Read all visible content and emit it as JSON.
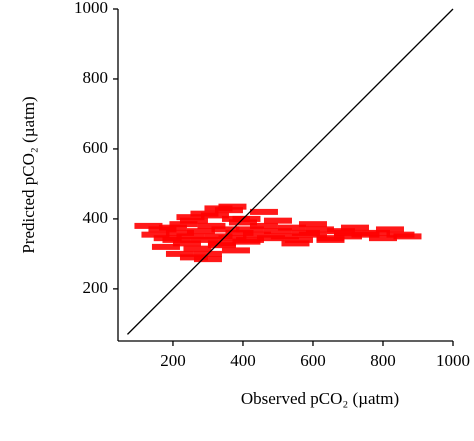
{
  "chart_data": {
    "type": "scatter",
    "xlabel": "Observed pCO₂ (µatm)",
    "ylabel": "Predicted pCO₂ (µatm)",
    "color": "#ff0000",
    "xlim": [
      43,
      1000
    ],
    "ylim": [
      51,
      1000
    ],
    "xticks": [
      200,
      400,
      600,
      800,
      1000
    ],
    "yticks": [
      200,
      400,
      600,
      800,
      1000
    ],
    "x": [
      130,
      150,
      170,
      185,
      200,
      210,
      220,
      230,
      240,
      250,
      260,
      270,
      280,
      290,
      300,
      310,
      320,
      330,
      340,
      350,
      360,
      370,
      380,
      390,
      400,
      410,
      420,
      440,
      460,
      480,
      500,
      520,
      540,
      560,
      580,
      600,
      620,
      650,
      680,
      700,
      720,
      750,
      780,
      800,
      820,
      850,
      870,
      180,
      220,
      260,
      300,
      340,
      380,
      420,
      460,
      500,
      550,
      600,
      650,
      700,
      250,
      290,
      330,
      370,
      410
    ],
    "y": [
      380,
      355,
      370,
      345,
      375,
      340,
      360,
      385,
      330,
      350,
      395,
      315,
      365,
      340,
      300,
      380,
      410,
      350,
      325,
      370,
      425,
      345,
      400,
      360,
      390,
      335,
      370,
      355,
      380,
      345,
      365,
      350,
      375,
      340,
      360,
      355,
      370,
      345,
      365,
      350,
      375,
      355,
      360,
      345,
      370,
      355,
      350,
      320,
      300,
      290,
      285,
      330,
      310,
      340,
      420,
      395,
      330,
      385,
      340,
      360,
      405,
      415,
      430,
      435,
      400
    ],
    "reference_line": {
      "x": [
        70,
        1000
      ],
      "y": [
        70,
        1000
      ],
      "color": "#000000"
    }
  }
}
